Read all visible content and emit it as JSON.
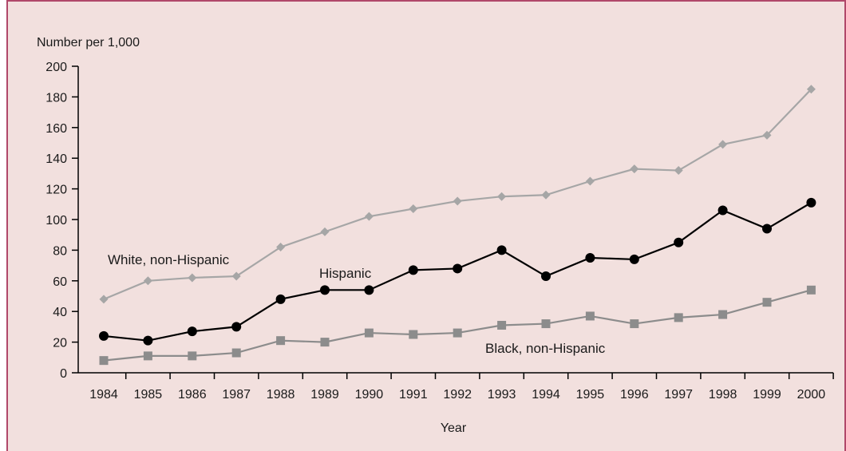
{
  "colors": {
    "background": "#f2e0de",
    "border": "#b0486a",
    "axis": "#000000"
  },
  "chart_data": {
    "type": "line",
    "title": "",
    "xlabel": "Year",
    "ylabel": "Number per 1,000",
    "x": [
      "1984",
      "1985",
      "1986",
      "1987",
      "1988",
      "1989",
      "1990",
      "1991",
      "1992",
      "1993",
      "1994",
      "1995",
      "1996",
      "1997",
      "1998",
      "1999",
      "2000"
    ],
    "ylim": [
      0,
      200
    ],
    "yticks": [
      "0",
      "20",
      "40",
      "60",
      "80",
      "100",
      "120",
      "140",
      "160",
      "180",
      "200"
    ],
    "grid": false,
    "legend": "inline",
    "series": [
      {
        "name": "White, non-Hispanic",
        "marker": "diamond",
        "color": "#a6a6a6",
        "values": [
          48,
          60,
          62,
          63,
          82,
          92,
          102,
          107,
          112,
          115,
          116,
          125,
          133,
          132,
          149,
          155,
          185
        ]
      },
      {
        "name": "Hispanic",
        "marker": "circle",
        "color": "#000000",
        "values": [
          24,
          21,
          27,
          30,
          48,
          54,
          54,
          67,
          68,
          80,
          63,
          75,
          74,
          85,
          106,
          94,
          111
        ]
      },
      {
        "name": "Black, non-Hispanic",
        "marker": "square",
        "color": "#8c8c8c",
        "values": [
          8,
          11,
          11,
          13,
          21,
          20,
          26,
          25,
          26,
          31,
          32,
          37,
          32,
          36,
          38,
          46,
          54
        ]
      }
    ]
  }
}
